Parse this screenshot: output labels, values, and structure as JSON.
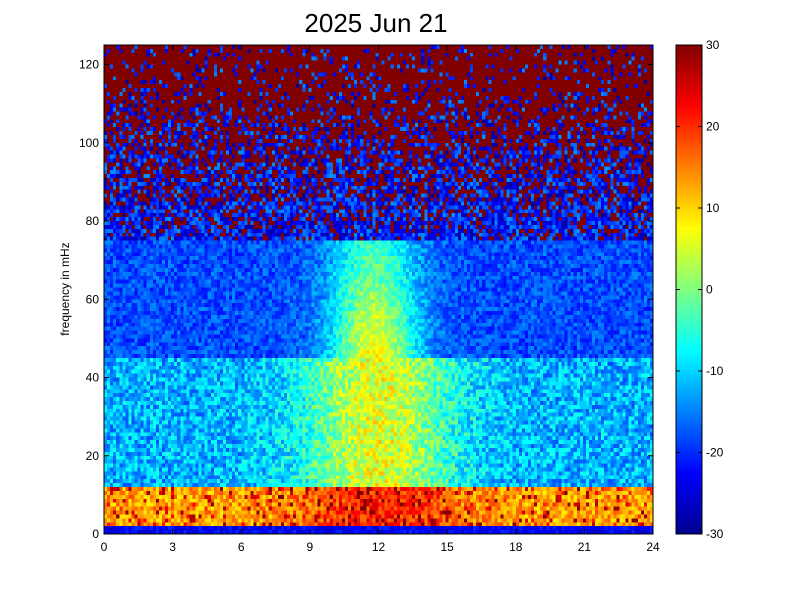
{
  "chart_data": {
    "type": "heatmap",
    "title": "2025 Jun 21",
    "xlabel": "",
    "ylabel": "frequency in mHz",
    "xlim": [
      0,
      24
    ],
    "ylim": [
      0,
      125
    ],
    "xticks": [
      0,
      3,
      6,
      9,
      12,
      15,
      18,
      21,
      24
    ],
    "yticks": [
      0,
      20,
      40,
      60,
      80,
      100,
      120
    ],
    "colorbar": {
      "colormap": "jet",
      "range": [
        -30,
        30
      ],
      "ticks": [
        30,
        20,
        10,
        0,
        -10,
        -20,
        -30
      ]
    },
    "grid": false,
    "description_of_pattern": [
      {
        "freq_range_mHz": [
          0,
          2
        ],
        "level": "low (~-25)"
      },
      {
        "freq_range_mHz": [
          2,
          12
        ],
        "level": "high (10 to 30) across full day"
      },
      {
        "freq_range_mHz": [
          12,
          45
        ],
        "level": "moderate (-15 to 0), stronger between hour 9 and 17"
      },
      {
        "freq_range_mHz": [
          45,
          75
        ],
        "level": "moderate (0 to 10) between hour 9.5 and 14, else low (-20)"
      },
      {
        "freq_range_mHz": [
          75,
          125
        ],
        "level": "mixed, speckled between -30 and 30, mostly dark red above 95"
      }
    ]
  }
}
